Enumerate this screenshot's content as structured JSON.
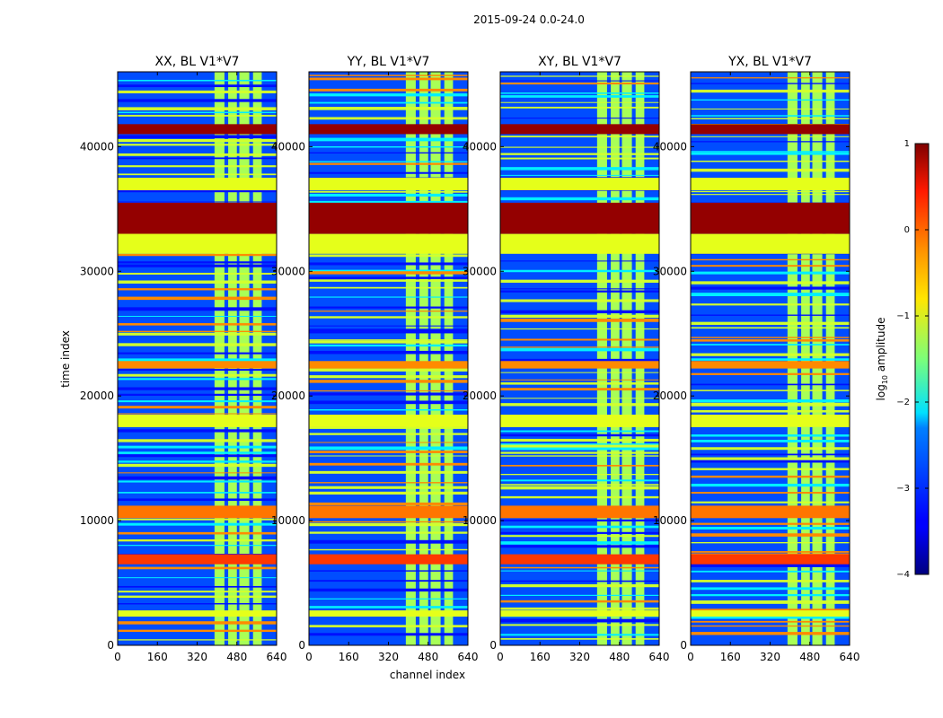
{
  "chart_data": {
    "type": "heatmap",
    "suptitle": "2015-09-24 0.0-24.0",
    "xlabel": "channel index",
    "ylabel": "time index",
    "xlim": [
      0,
      640
    ],
    "ylim": [
      0,
      46000
    ],
    "xticks": [
      0,
      160,
      320,
      480,
      640
    ],
    "yticks": [
      0,
      10000,
      20000,
      30000,
      40000
    ],
    "panels": [
      {
        "title": "XX, BL V1*V7"
      },
      {
        "title": "YY, BL V1*V7"
      },
      {
        "title": "XY, BL V1*V7"
      },
      {
        "title": "YX, BL V1*V7"
      }
    ],
    "colorbar": {
      "label_prefix": "log",
      "label_sub": "10",
      "label_suffix": " amplitude",
      "range": [
        -4,
        1
      ],
      "ticks": [
        1,
        0,
        -1,
        -2,
        -3,
        -4
      ],
      "tick_labels": [
        "1",
        "0",
        "−1",
        "−2",
        "−3",
        "−4"
      ],
      "colormap": "jet"
    },
    "flagged_time_bands": [
      {
        "start": 33000,
        "end": 35500,
        "log10_amplitude": 0.9
      },
      {
        "start": 41000,
        "end": 41800,
        "log10_amplitude": 0.9
      },
      {
        "start": 31400,
        "end": 33000,
        "log10_amplitude": -1.0
      },
      {
        "start": 36500,
        "end": 37500,
        "log10_amplitude": -1.0
      },
      {
        "start": 17500,
        "end": 18500,
        "log10_amplitude": -1.0
      },
      {
        "start": 22200,
        "end": 22800,
        "log10_amplitude": -0.3
      },
      {
        "start": 10200,
        "end": 11200,
        "log10_amplitude": -0.2
      },
      {
        "start": 6500,
        "end": 7300,
        "log10_amplitude": 0.1
      },
      {
        "start": 2300,
        "end": 2800,
        "log10_amplitude": -1.0
      }
    ],
    "rfi_channel_columns": [
      {
        "start": 390,
        "end": 430
      },
      {
        "start": 445,
        "end": 480
      },
      {
        "start": 490,
        "end": 530
      },
      {
        "start": 545,
        "end": 580
      }
    ],
    "typical_background_log10_amplitude": -3.0
  }
}
